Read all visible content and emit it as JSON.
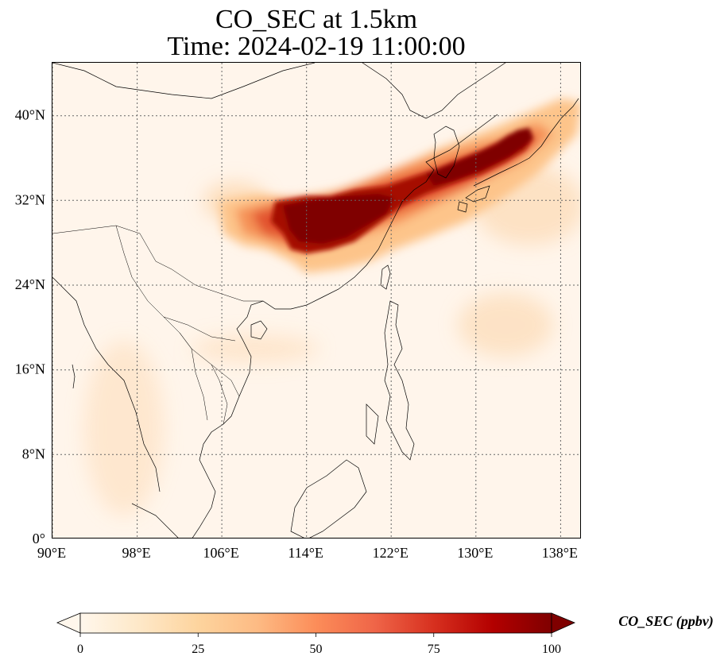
{
  "title": {
    "line1": "CO_SEC at 1.5km",
    "line2": "Time: 2024-02-19 11:00:00"
  },
  "map": {
    "lon_range": [
      90,
      140
    ],
    "lat_range": [
      0,
      45
    ],
    "lon_ticks": [
      "90°E",
      "98°E",
      "106°E",
      "114°E",
      "122°E",
      "130°E",
      "138°E"
    ],
    "lat_ticks": [
      "0°",
      "8°N",
      "16°N",
      "24°N",
      "32°N",
      "40°N"
    ],
    "gridlines": "dotted"
  },
  "colorbar": {
    "label": "CO_SEC (ppbv)",
    "colormap": "OrRd",
    "ticks": [
      "0",
      "25",
      "50",
      "75",
      "100"
    ],
    "range": [
      0,
      100
    ],
    "extend": "both"
  },
  "chart_data": {
    "type": "heatmap",
    "variable": "CO_SEC",
    "units": "ppbv",
    "level": "1.5km",
    "time": "2024-02-19 11:00:00",
    "plume": {
      "description_axis_units": "lon/lat degrees",
      "core_max_region": {
        "lon": [
          110,
          135
        ],
        "lat": [
          28,
          38
        ],
        "value_approx": 100
      },
      "secondary_region": {
        "lon": [
          107,
          123
        ],
        "lat": [
          25,
          36
        ],
        "value_approx": 40
      }
    }
  }
}
